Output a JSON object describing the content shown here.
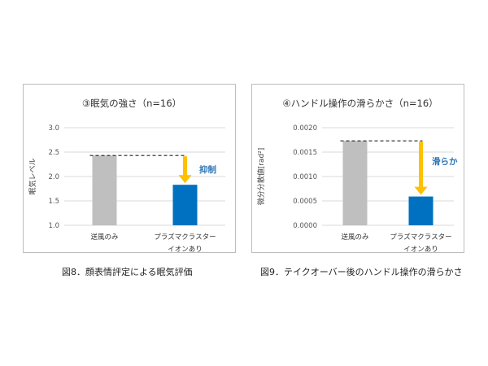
{
  "colors": {
    "gray_bar": "#bfbfbf",
    "blue_bar": "#0070c0",
    "arrow": "#ffc000",
    "annotation_text": "#2e75b6",
    "grid": "#d9d9d9"
  },
  "figures": [
    {
      "caption": "図8．顔表情評定による眠気評価",
      "annotation": "抑制"
    },
    {
      "caption": "図9．テイクオーバー後のハンドル操作の滑らかさ",
      "annotation": "滑らか"
    }
  ],
  "chart_data": [
    {
      "type": "bar",
      "title": "③眠気の強さ（n=16）",
      "ylabel": "眠気レベル",
      "xlabel": "",
      "categories": [
        "送風のみ",
        "プラズマクラスター\nイオンあり"
      ],
      "values": [
        2.43,
        1.83
      ],
      "ylim": [
        1.0,
        3.0
      ],
      "yticks": [
        "1.0",
        "1.5",
        "2.0",
        "2.5",
        "3.0"
      ],
      "ytick_values": [
        1.0,
        1.5,
        2.0,
        2.5,
        3.0
      ],
      "bar_colors": [
        "#bfbfbf",
        "#0070c0"
      ],
      "grid": true
    },
    {
      "type": "bar",
      "title": "④ハンドル操作の滑らかさ（n=16）",
      "ylabel": "微分分散値[rad²]",
      "xlabel": "",
      "categories": [
        "送風のみ",
        "プラズマクラスター\nイオンあり"
      ],
      "values": [
        0.00173,
        0.00059
      ],
      "ylim": [
        0,
        0.002
      ],
      "yticks": [
        "0.0000",
        "0.0005",
        "0.0010",
        "0.0015",
        "0.0020"
      ],
      "ytick_values": [
        0,
        0.0005,
        0.001,
        0.0015,
        0.002
      ],
      "bar_colors": [
        "#bfbfbf",
        "#0070c0"
      ],
      "grid": true
    }
  ]
}
